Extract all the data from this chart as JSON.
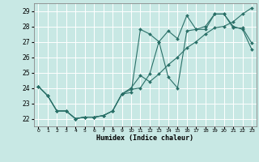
{
  "xlabel": "Humidex (Indice chaleur)",
  "xlim": [
    -0.5,
    23.5
  ],
  "ylim": [
    21.5,
    29.5
  ],
  "yticks": [
    22,
    23,
    24,
    25,
    26,
    27,
    28,
    29
  ],
  "xticks": [
    0,
    1,
    2,
    3,
    4,
    5,
    6,
    7,
    8,
    9,
    10,
    11,
    12,
    13,
    14,
    15,
    16,
    17,
    18,
    19,
    20,
    21,
    22,
    23
  ],
  "bg_color": "#c8e8e4",
  "line_color": "#2a7068",
  "grid_color": "#ffffff",
  "line1_x": [
    0,
    1,
    2,
    3,
    4,
    5,
    6,
    7,
    8,
    9,
    10,
    11,
    12,
    13,
    14,
    15,
    16,
    17,
    18,
    19,
    20,
    21,
    22,
    23
  ],
  "line1_y": [
    24.1,
    23.5,
    22.5,
    22.5,
    22.0,
    22.1,
    22.1,
    22.2,
    22.5,
    23.6,
    23.7,
    27.8,
    27.5,
    27.0,
    24.7,
    24.0,
    27.7,
    27.8,
    27.8,
    28.8,
    28.8,
    27.9,
    27.9,
    26.9
  ],
  "line2_x": [
    0,
    1,
    2,
    3,
    4,
    5,
    6,
    7,
    8,
    9,
    10,
    11,
    12,
    13,
    14,
    15,
    16,
    17,
    18,
    19,
    20,
    21,
    22,
    23
  ],
  "line2_y": [
    24.1,
    23.5,
    22.5,
    22.5,
    22.0,
    22.1,
    22.1,
    22.2,
    22.5,
    23.6,
    24.0,
    24.8,
    24.4,
    24.9,
    25.5,
    26.0,
    26.6,
    27.0,
    27.5,
    27.9,
    28.0,
    28.3,
    28.8,
    29.2
  ],
  "line3_x": [
    0,
    1,
    2,
    3,
    4,
    5,
    6,
    7,
    8,
    9,
    10,
    11,
    12,
    13,
    14,
    15,
    16,
    17,
    18,
    19,
    20,
    21,
    22,
    23
  ],
  "line3_y": [
    24.1,
    23.5,
    22.5,
    22.5,
    22.0,
    22.1,
    22.1,
    22.2,
    22.5,
    23.6,
    23.9,
    24.0,
    24.9,
    27.0,
    27.7,
    27.2,
    28.7,
    27.8,
    28.0,
    28.8,
    28.8,
    28.0,
    27.8,
    26.5
  ]
}
